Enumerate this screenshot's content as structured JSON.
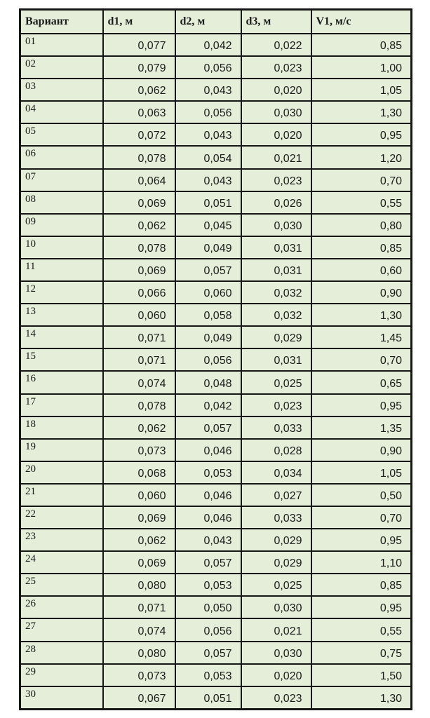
{
  "colors": {
    "cell_background": "#e4eed9",
    "border": "#161616",
    "text": "#1b1b1b",
    "page_background": "#ffffff"
  },
  "table": {
    "columns": [
      "Вариант",
      "d1, м",
      "d2, м",
      "d3, м",
      "V1, м/с"
    ],
    "rows": [
      {
        "variant": "01",
        "d1": "0,077",
        "d2": "0,042",
        "d3": "0,022",
        "v1": "0,85"
      },
      {
        "variant": "02",
        "d1": "0,079",
        "d2": "0,056",
        "d3": "0,023",
        "v1": "1,00"
      },
      {
        "variant": "03",
        "d1": "0,062",
        "d2": "0,043",
        "d3": "0,020",
        "v1": "1,05"
      },
      {
        "variant": "04",
        "d1": "0,063",
        "d2": "0,056",
        "d3": "0,030",
        "v1": "1,30"
      },
      {
        "variant": "05",
        "d1": "0,072",
        "d2": "0,043",
        "d3": "0,020",
        "v1": "0,95"
      },
      {
        "variant": "06",
        "d1": "0,078",
        "d2": "0,054",
        "d3": "0,021",
        "v1": "1,20"
      },
      {
        "variant": "07",
        "d1": "0,064",
        "d2": "0,043",
        "d3": "0,023",
        "v1": "0,70"
      },
      {
        "variant": "08",
        "d1": "0,069",
        "d2": "0,051",
        "d3": "0,026",
        "v1": "0,55"
      },
      {
        "variant": "09",
        "d1": "0,062",
        "d2": "0,045",
        "d3": "0,030",
        "v1": "0,80"
      },
      {
        "variant": "10",
        "d1": "0,078",
        "d2": "0,049",
        "d3": "0,031",
        "v1": "0,85"
      },
      {
        "variant": "11",
        "d1": "0,069",
        "d2": "0,057",
        "d3": "0,031",
        "v1": "0,60"
      },
      {
        "variant": "12",
        "d1": "0,066",
        "d2": "0,060",
        "d3": "0,032",
        "v1": "0,90"
      },
      {
        "variant": "13",
        "d1": "0,060",
        "d2": "0,058",
        "d3": "0,032",
        "v1": "1,30"
      },
      {
        "variant": "14",
        "d1": "0,071",
        "d2": "0,049",
        "d3": "0,029",
        "v1": "1,45"
      },
      {
        "variant": "15",
        "d1": "0,071",
        "d2": "0,056",
        "d3": "0,031",
        "v1": "0,70"
      },
      {
        "variant": "16",
        "d1": "0,074",
        "d2": "0,048",
        "d3": "0,025",
        "v1": "0,65"
      },
      {
        "variant": "17",
        "d1": "0,078",
        "d2": "0,042",
        "d3": "0,023",
        "v1": "0,95"
      },
      {
        "variant": "18",
        "d1": "0,062",
        "d2": "0,057",
        "d3": "0,033",
        "v1": "1,35"
      },
      {
        "variant": "19",
        "d1": "0,073",
        "d2": "0,046",
        "d3": "0,028",
        "v1": "0,90"
      },
      {
        "variant": "20",
        "d1": "0,068",
        "d2": "0,053",
        "d3": "0,034",
        "v1": "1,05"
      },
      {
        "variant": "21",
        "d1": "0,060",
        "d2": "0,046",
        "d3": "0,027",
        "v1": "0,50"
      },
      {
        "variant": "22",
        "d1": "0,069",
        "d2": "0,046",
        "d3": "0,033",
        "v1": "0,70"
      },
      {
        "variant": "23",
        "d1": "0,062",
        "d2": "0,043",
        "d3": "0,029",
        "v1": "0,95"
      },
      {
        "variant": "24",
        "d1": "0,069",
        "d2": "0,057",
        "d3": "0,029",
        "v1": "1,10"
      },
      {
        "variant": "25",
        "d1": "0,080",
        "d2": "0,053",
        "d3": "0,025",
        "v1": "0,85"
      },
      {
        "variant": "26",
        "d1": "0,071",
        "d2": "0,050",
        "d3": "0,030",
        "v1": "0,95"
      },
      {
        "variant": "27",
        "d1": "0,074",
        "d2": "0,056",
        "d3": "0,021",
        "v1": "0,55"
      },
      {
        "variant": "28",
        "d1": "0,080",
        "d2": "0,057",
        "d3": "0,030",
        "v1": "0,75"
      },
      {
        "variant": "29",
        "d1": "0,073",
        "d2": "0,053",
        "d3": "0,020",
        "v1": "1,50"
      },
      {
        "variant": "30",
        "d1": "0,067",
        "d2": "0,051",
        "d3": "0,023",
        "v1": "1,30"
      }
    ]
  }
}
